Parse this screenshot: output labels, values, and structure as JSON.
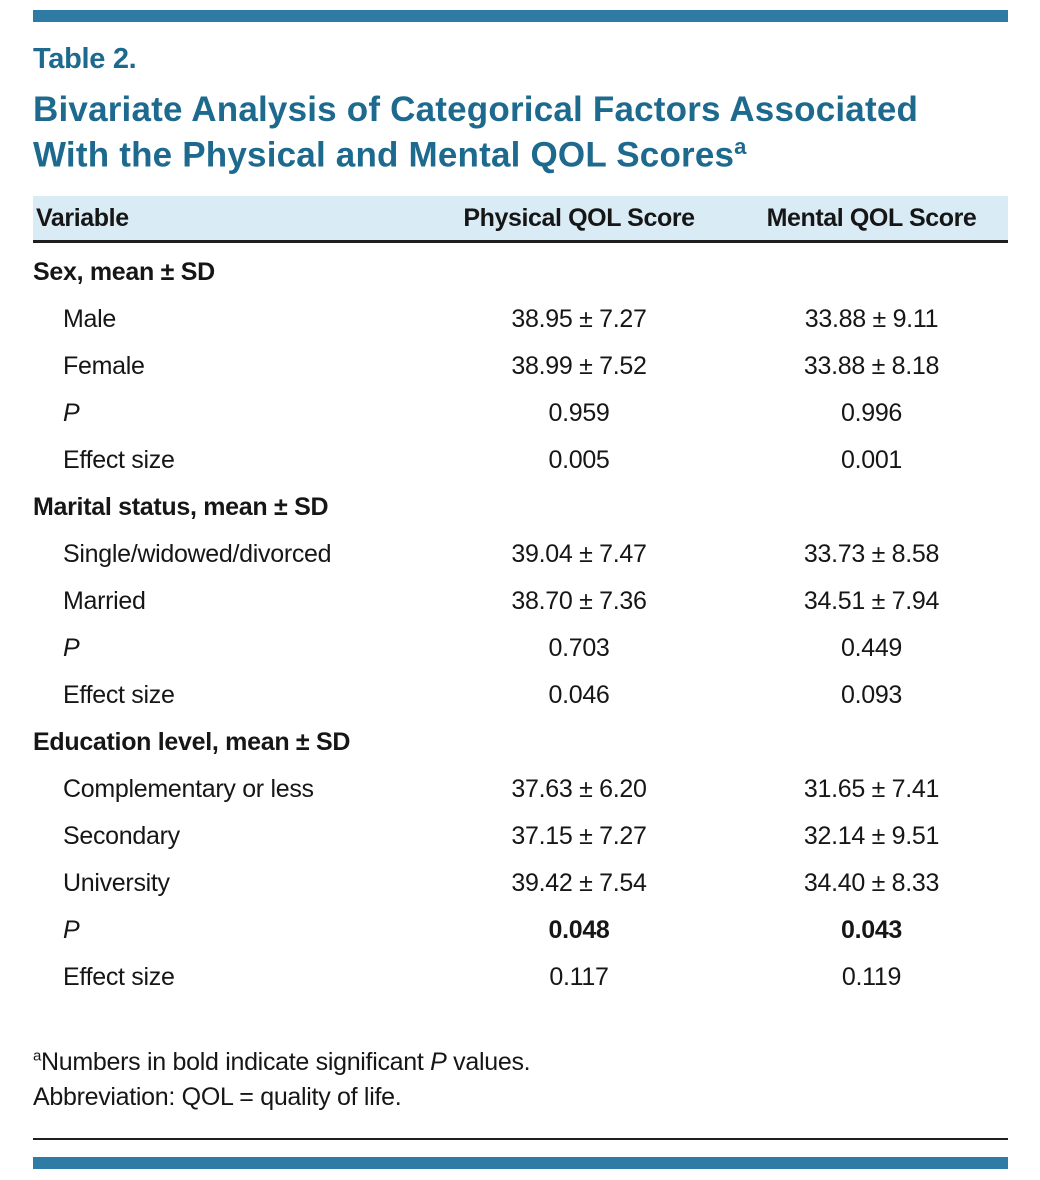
{
  "accent": {
    "bar_color": "#2e7ca6",
    "title_color": "#1d6a8e",
    "header_band_bg": "#d9ebf5"
  },
  "header": {
    "table_label": "Table 2.",
    "title": "Bivariate Analysis of Categorical Factors Associated With the Physical and Mental QOL Scores",
    "title_sup": "a"
  },
  "table": {
    "columns": [
      "Variable",
      "Physical QOL Score",
      "Mental QOL Score"
    ],
    "sections": [
      {
        "header": "Sex, mean ± SD",
        "rows": [
          {
            "label": "Male",
            "physical": "38.95 ± 7.27",
            "mental": "33.88 ± 9.11"
          },
          {
            "label": "Female",
            "physical": "38.99 ± 7.52",
            "mental": "33.88 ± 8.18"
          },
          {
            "label": "P",
            "physical": "0.959",
            "mental": "0.996"
          },
          {
            "label": "Effect size",
            "physical": "0.005",
            "mental": "0.001"
          }
        ]
      },
      {
        "header": "Marital status, mean ± SD",
        "rows": [
          {
            "label": "Single/widowed/divorced",
            "physical": "39.04 ± 7.47",
            "mental": "33.73 ± 8.58"
          },
          {
            "label": "Married",
            "physical": "38.70 ± 7.36",
            "mental": "34.51 ± 7.94"
          },
          {
            "label": "P",
            "physical": "0.703",
            "mental": "0.449"
          },
          {
            "label": "Effect size",
            "physical": "0.046",
            "mental": "0.093"
          }
        ]
      },
      {
        "header": "Education level, mean ± SD",
        "rows": [
          {
            "label": "Complementary or less",
            "physical": "37.63 ± 6.20",
            "mental": "31.65 ± 7.41"
          },
          {
            "label": "Secondary",
            "physical": "37.15 ± 7.27",
            "mental": "32.14 ± 9.51"
          },
          {
            "label": "University",
            "physical": "39.42 ± 7.54",
            "mental": "34.40 ± 8.33"
          },
          {
            "label": "P",
            "physical": "0.048",
            "mental": "0.043"
          },
          {
            "label": "Effect size",
            "physical": "0.117",
            "mental": "0.119"
          }
        ]
      }
    ]
  },
  "footnotes": {
    "note_a": {
      "sup": "a",
      "pre": "Numbers in bold indicate significant ",
      "italic": "P",
      "post": " values."
    },
    "abbreviation": "Abbreviation: QOL = quality of life."
  }
}
